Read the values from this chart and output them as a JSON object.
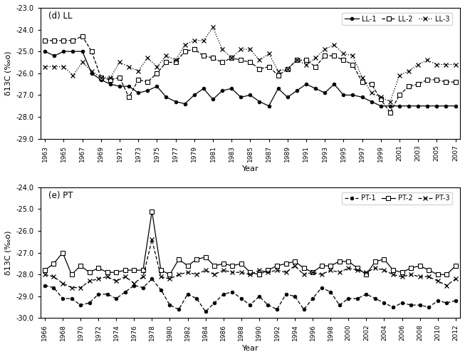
{
  "LL": {
    "title": "(d) LL",
    "xlabel": "Year",
    "ylabel": "δ13C (‰o)",
    "ylim": [
      -29.0,
      -23.0
    ],
    "yticks": [
      -29.0,
      -28.0,
      -27.0,
      -26.0,
      -25.0,
      -24.0,
      -23.0
    ],
    "years_LL1": [
      1963,
      1964,
      1965,
      1966,
      1967,
      1968,
      1969,
      1970,
      1971,
      1972,
      1973,
      1974,
      1975,
      1976,
      1977,
      1978,
      1979,
      1980,
      1981,
      1982,
      1983,
      1984,
      1985,
      1986,
      1987,
      1988,
      1989,
      1990,
      1991,
      1992,
      1993,
      1994,
      1995,
      1996,
      1997,
      1998,
      1999,
      2000,
      2001,
      2002,
      2003,
      2004,
      2005,
      2006,
      2007
    ],
    "LL1": [
      -25.0,
      -25.2,
      -25.0,
      -25.0,
      -25.0,
      -26.0,
      -26.3,
      -26.5,
      -26.6,
      -26.6,
      -26.9,
      -26.8,
      -26.6,
      -27.1,
      -27.3,
      -27.4,
      -27.0,
      -26.7,
      -27.2,
      -26.8,
      -26.7,
      -27.1,
      -27.0,
      -27.3,
      -27.5,
      -26.7,
      -27.1,
      -26.8,
      -26.5,
      -26.7,
      -26.9,
      -26.5,
      -27.0,
      -27.0,
      -27.1,
      -27.3,
      -27.5,
      -27.5,
      -27.5,
      -27.5,
      -27.5,
      -27.5,
      -27.5,
      -27.5,
      -27.5
    ],
    "years_LL2": [
      1963,
      1964,
      1965,
      1966,
      1967,
      1968,
      1969,
      1970,
      1971,
      1972,
      1973,
      1974,
      1975,
      1976,
      1977,
      1978,
      1979,
      1980,
      1981,
      1982,
      1983,
      1984,
      1985,
      1986,
      1987,
      1988,
      1989,
      1990,
      1991,
      1992,
      1993,
      1994,
      1995,
      1996,
      1997,
      1998,
      1999,
      2000,
      2001,
      2002,
      2003,
      2004,
      2005,
      2006,
      2007
    ],
    "LL2": [
      -24.5,
      -24.5,
      -24.5,
      -24.5,
      -24.3,
      -25.0,
      -26.2,
      -26.3,
      -26.2,
      -27.1,
      -26.3,
      -26.4,
      -26.0,
      -25.5,
      -25.5,
      -25.0,
      -24.9,
      -25.2,
      -25.3,
      -25.5,
      -25.3,
      -25.4,
      -25.5,
      -25.8,
      -25.7,
      -26.1,
      -25.8,
      -25.4,
      -25.4,
      -25.7,
      -25.2,
      -25.2,
      -25.4,
      -25.6,
      -26.4,
      -26.5,
      -27.2,
      -27.8,
      -27.0,
      -26.6,
      -26.5,
      -26.3,
      -26.3,
      -26.4,
      -26.4
    ],
    "years_LL3": [
      1963,
      1964,
      1965,
      1966,
      1967,
      1968,
      1969,
      1970,
      1971,
      1972,
      1973,
      1974,
      1975,
      1976,
      1977,
      1978,
      1979,
      1980,
      1981,
      1982,
      1983,
      1984,
      1985,
      1986,
      1987,
      1988,
      1989,
      1990,
      1991,
      1992,
      1993,
      1994,
      1995,
      1996,
      1997,
      1998,
      1999,
      2000,
      2001,
      2002,
      2003,
      2004,
      2005,
      2006,
      2007
    ],
    "LL3": [
      -25.7,
      -25.7,
      -25.7,
      -26.1,
      -25.5,
      -25.9,
      -26.2,
      -26.2,
      -25.5,
      -25.7,
      -25.9,
      -25.3,
      -25.7,
      -25.2,
      -25.4,
      -24.7,
      -24.5,
      -24.5,
      -23.9,
      -24.9,
      -25.3,
      -24.9,
      -24.9,
      -25.4,
      -25.1,
      -25.9,
      -25.8,
      -25.4,
      -25.6,
      -25.3,
      -24.9,
      -24.7,
      -25.1,
      -25.2,
      -26.2,
      -26.9,
      -27.1,
      -27.3,
      -26.1,
      -25.9,
      -25.6,
      -25.4,
      -25.6,
      -25.6,
      -25.6
    ],
    "xtick_labels": [
      "1963",
      "1965",
      "1967",
      "1969",
      "1971",
      "1973",
      "1975",
      "1977",
      "1979",
      "1981",
      "1983",
      "1985",
      "1987",
      "1989",
      "1991",
      "1993",
      "1995",
      "1997",
      "1999",
      "2001",
      "2003",
      "2005",
      "2007"
    ],
    "xtick_values": [
      1963,
      1965,
      1967,
      1969,
      1971,
      1973,
      1975,
      1977,
      1979,
      1981,
      1983,
      1985,
      1987,
      1989,
      1991,
      1993,
      1995,
      1997,
      1999,
      2001,
      2003,
      2005,
      2007
    ]
  },
  "PT": {
    "title": "(e) PT",
    "xlabel": "Year",
    "ylabel": "δ13C (‰o)",
    "ylim": [
      -30.0,
      -24.0
    ],
    "yticks": [
      -30.0,
      -29.0,
      -28.0,
      -27.0,
      -26.0,
      -25.0,
      -24.0
    ],
    "years_PT1": [
      1966,
      1967,
      1968,
      1969,
      1970,
      1971,
      1972,
      1973,
      1974,
      1975,
      1976,
      1977,
      1978,
      1979,
      1980,
      1981,
      1982,
      1983,
      1984,
      1985,
      1986,
      1987,
      1988,
      1989,
      1990,
      1991,
      1992,
      1993,
      1994,
      1995,
      1996,
      1997,
      1998,
      1999,
      2000,
      2001,
      2002,
      2003,
      2004,
      2005,
      2006,
      2007,
      2008,
      2009,
      2010,
      2011,
      2012
    ],
    "PT1": [
      -28.5,
      -28.6,
      -29.1,
      -29.1,
      -29.4,
      -29.3,
      -28.9,
      -28.9,
      -29.1,
      -28.8,
      -28.5,
      -28.6,
      -28.2,
      -28.7,
      -29.4,
      -29.6,
      -28.9,
      -29.1,
      -29.7,
      -29.3,
      -28.9,
      -28.8,
      -29.1,
      -29.4,
      -29.0,
      -29.4,
      -29.6,
      -28.9,
      -29.0,
      -29.6,
      -29.1,
      -28.6,
      -28.8,
      -29.4,
      -29.1,
      -29.1,
      -28.9,
      -29.1,
      -29.3,
      -29.5,
      -29.3,
      -29.4,
      -29.4,
      -29.5,
      -29.2,
      -29.3,
      -29.2
    ],
    "years_PT2": [
      1966,
      1967,
      1968,
      1969,
      1970,
      1971,
      1972,
      1973,
      1974,
      1975,
      1976,
      1977,
      1978,
      1979,
      1980,
      1981,
      1982,
      1983,
      1984,
      1985,
      1986,
      1987,
      1988,
      1989,
      1990,
      1991,
      1992,
      1993,
      1994,
      1995,
      1996,
      1997,
      1998,
      1999,
      2000,
      2001,
      2002,
      2003,
      2004,
      2005,
      2006,
      2007,
      2008,
      2009,
      2010,
      2011,
      2012
    ],
    "PT2": [
      -27.8,
      -27.5,
      -27.0,
      -28.0,
      -27.6,
      -27.9,
      -27.7,
      -27.9,
      -27.9,
      -27.8,
      -27.8,
      -27.8,
      -25.1,
      -27.8,
      -28.0,
      -27.3,
      -27.6,
      -27.3,
      -27.2,
      -27.6,
      -27.5,
      -27.6,
      -27.5,
      -27.9,
      -28.0,
      -27.8,
      -27.6,
      -27.5,
      -27.4,
      -27.7,
      -27.9,
      -27.6,
      -27.6,
      -27.4,
      -27.4,
      -27.7,
      -28.0,
      -27.4,
      -27.3,
      -27.8,
      -27.9,
      -27.7,
      -27.6,
      -27.8,
      -28.0,
      -28.0,
      -27.6
    ],
    "years_PT3": [
      1966,
      1967,
      1968,
      1969,
      1970,
      1971,
      1972,
      1973,
      1974,
      1975,
      1976,
      1977,
      1978,
      1979,
      1980,
      1981,
      1982,
      1983,
      1984,
      1985,
      1986,
      1987,
      1988,
      1989,
      1990,
      1991,
      1992,
      1993,
      1994,
      1995,
      1996,
      1997,
      1998,
      1999,
      2000,
      2001,
      2002,
      2003,
      2004,
      2005,
      2006,
      2007,
      2008,
      2009,
      2010,
      2011,
      2012
    ],
    "PT3": [
      -28.0,
      -28.1,
      -28.4,
      -28.6,
      -28.6,
      -28.3,
      -28.2,
      -28.1,
      -28.3,
      -28.1,
      -28.4,
      -28.1,
      -26.4,
      -28.1,
      -28.2,
      -28.0,
      -27.9,
      -28.0,
      -27.8,
      -28.0,
      -27.8,
      -27.9,
      -27.9,
      -28.0,
      -27.8,
      -27.9,
      -27.8,
      -27.9,
      -27.6,
      -28.0,
      -27.9,
      -28.0,
      -27.8,
      -27.9,
      -27.7,
      -27.8,
      -27.9,
      -27.7,
      -27.8,
      -28.0,
      -28.1,
      -28.0,
      -28.1,
      -28.1,
      -28.3,
      -28.5,
      -28.2
    ],
    "xtick_labels": [
      "1966",
      "1968",
      "1970",
      "1972",
      "1974",
      "1976",
      "1978",
      "1980",
      "1982",
      "1984",
      "1986",
      "1988",
      "1990",
      "1992",
      "1994",
      "1996",
      "1998",
      "2000",
      "2002",
      "2004",
      "2006",
      "2008",
      "2010",
      "2012"
    ],
    "xtick_values": [
      1966,
      1968,
      1970,
      1972,
      1974,
      1976,
      1978,
      1980,
      1982,
      1984,
      1986,
      1988,
      1990,
      1992,
      1994,
      1996,
      1998,
      2000,
      2002,
      2004,
      2006,
      2008,
      2010,
      2012
    ]
  }
}
